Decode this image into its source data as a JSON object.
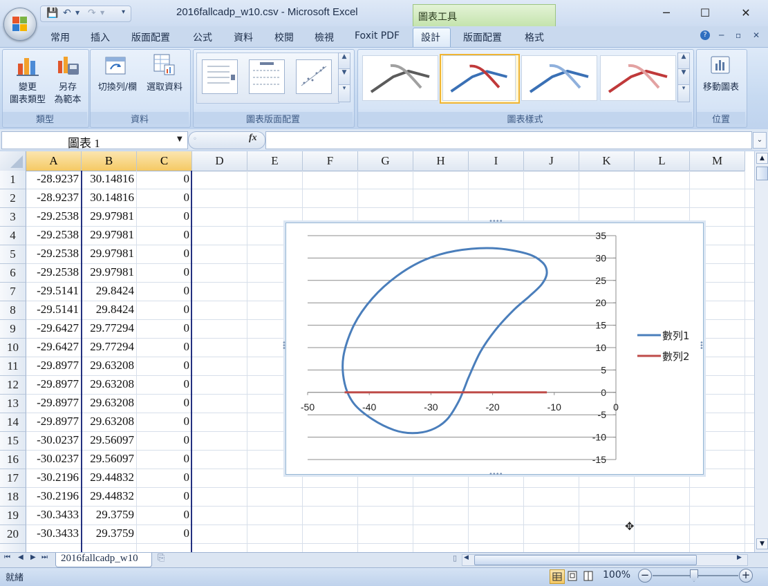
{
  "window": {
    "title": "2016fallcadp_w10.csv - Microsoft Excel",
    "context_tab_group": "圖表工具",
    "controls": [
      "─",
      "☐",
      "✕"
    ]
  },
  "ribbon": {
    "tabs": [
      "常用",
      "插入",
      "版面配置",
      "公式",
      "資料",
      "校閱",
      "檢視",
      "Foxit PDF",
      "設計",
      "版面配置",
      "格式"
    ],
    "active_tab": "設計",
    "groups": {
      "type": {
        "label": "類型",
        "change_chart_type": [
          "變更",
          "圖表類型"
        ],
        "save_as_template": [
          "另存",
          "為範本"
        ]
      },
      "data": {
        "label": "資料",
        "switch_row_col": "切換列/欄",
        "select_data": "選取資料"
      },
      "layouts": {
        "label": "圖表版面配置"
      },
      "styles": {
        "label": "圖表樣式"
      },
      "location": {
        "label": "位置",
        "move_chart": "移動圖表"
      }
    }
  },
  "formula_bar": {
    "name_box": "圖表 1",
    "fx": "fx",
    "formula": ""
  },
  "sheet": {
    "columns": [
      "A",
      "B",
      "C",
      "D",
      "E",
      "F",
      "G",
      "H",
      "I",
      "J",
      "K",
      "L",
      "M"
    ],
    "selected_columns": [
      "A",
      "B",
      "C"
    ],
    "rows": [
      {
        "n": "1",
        "a": "-28.9237",
        "b": "30.14816",
        "c": "0"
      },
      {
        "n": "2",
        "a": "-28.9237",
        "b": "30.14816",
        "c": "0"
      },
      {
        "n": "3",
        "a": "-29.2538",
        "b": "29.97981",
        "c": "0"
      },
      {
        "n": "4",
        "a": "-29.2538",
        "b": "29.97981",
        "c": "0"
      },
      {
        "n": "5",
        "a": "-29.2538",
        "b": "29.97981",
        "c": "0"
      },
      {
        "n": "6",
        "a": "-29.2538",
        "b": "29.97981",
        "c": "0"
      },
      {
        "n": "7",
        "a": "-29.5141",
        "b": "29.8424",
        "c": "0"
      },
      {
        "n": "8",
        "a": "-29.5141",
        "b": "29.8424",
        "c": "0"
      },
      {
        "n": "9",
        "a": "-29.6427",
        "b": "29.77294",
        "c": "0"
      },
      {
        "n": "10",
        "a": "-29.6427",
        "b": "29.77294",
        "c": "0"
      },
      {
        "n": "11",
        "a": "-29.8977",
        "b": "29.63208",
        "c": "0"
      },
      {
        "n": "12",
        "a": "-29.8977",
        "b": "29.63208",
        "c": "0"
      },
      {
        "n": "13",
        "a": "-29.8977",
        "b": "29.63208",
        "c": "0"
      },
      {
        "n": "14",
        "a": "-29.8977",
        "b": "29.63208",
        "c": "0"
      },
      {
        "n": "15",
        "a": "-30.0237",
        "b": "29.56097",
        "c": "0"
      },
      {
        "n": "16",
        "a": "-30.0237",
        "b": "29.56097",
        "c": "0"
      },
      {
        "n": "17",
        "a": "-30.2196",
        "b": "29.44832",
        "c": "0"
      },
      {
        "n": "18",
        "a": "-30.2196",
        "b": "29.44832",
        "c": "0"
      },
      {
        "n": "19",
        "a": "-30.3433",
        "b": "29.3759",
        "c": "0"
      },
      {
        "n": "20",
        "a": "-30.3433",
        "b": "29.3759",
        "c": "0"
      }
    ],
    "sheet_tab": "2016fallcadp_w10"
  },
  "status": {
    "ready": "就緒",
    "zoom": "100%"
  },
  "chart_data": {
    "type": "scatter",
    "title": "",
    "xlabel": "",
    "ylabel": "",
    "xlim": [
      -50,
      0
    ],
    "ylim": [
      -15,
      35
    ],
    "x_ticks": [
      -50,
      -40,
      -30,
      -20,
      -10,
      0
    ],
    "y_ticks": [
      35,
      30,
      25,
      20,
      15,
      10,
      5,
      0,
      -5,
      -10,
      -15
    ],
    "grid": "horizontal",
    "legend": "right",
    "series": [
      {
        "name": "數列1",
        "color": "#4a7ebb",
        "points": [
          [
            -24.0,
            3.0
          ],
          [
            -22.0,
            9.0
          ],
          [
            -19.5,
            14.0
          ],
          [
            -16.5,
            18.5
          ],
          [
            -14.0,
            21.5
          ],
          [
            -12.0,
            24.2
          ],
          [
            -11.2,
            26.7
          ],
          [
            -11.9,
            29.0
          ],
          [
            -14.5,
            31.0
          ],
          [
            -20.0,
            32.2
          ],
          [
            -26.0,
            31.6
          ],
          [
            -31.0,
            29.6
          ],
          [
            -35.5,
            26.0
          ],
          [
            -39.5,
            21.0
          ],
          [
            -42.5,
            15.0
          ],
          [
            -44.2,
            8.0
          ],
          [
            -44.0,
            2.0
          ],
          [
            -42.5,
            -2.5
          ],
          [
            -39.5,
            -6.0
          ],
          [
            -36.0,
            -8.4
          ],
          [
            -33.0,
            -9.1
          ],
          [
            -30.0,
            -8.4
          ],
          [
            -27.5,
            -6.2
          ],
          [
            -25.5,
            -2.0
          ],
          [
            -24.0,
            3.0
          ]
        ]
      },
      {
        "name": "數列2",
        "color": "#be4b48",
        "points": [
          [
            -44.0,
            0.0
          ],
          [
            -11.2,
            0.0
          ]
        ]
      }
    ]
  }
}
